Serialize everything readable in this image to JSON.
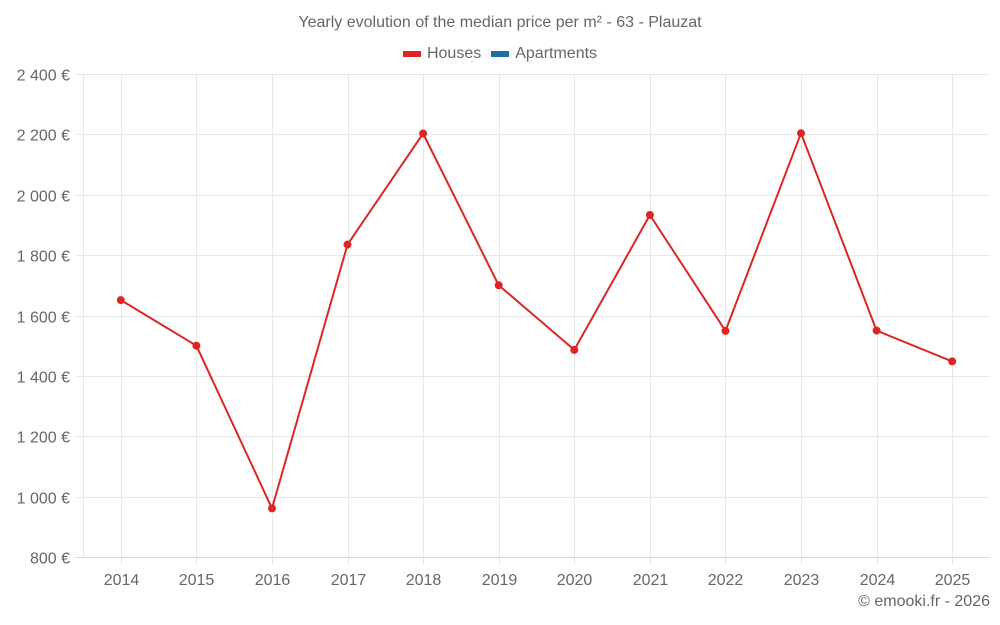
{
  "title": "Yearly evolution of the median price per m² - 63 - Plauzat",
  "legend": [
    {
      "label": "Houses",
      "color": "#dc2626"
    },
    {
      "label": "Apartments",
      "color": "#1e6fa8"
    }
  ],
  "credit": "© emooki.fr - 2026",
  "colors": {
    "houses": "#dc2626",
    "apartments": "#1e6fa8",
    "grid": "#e8e8e8",
    "text": "#666666"
  },
  "chart_data": {
    "type": "line",
    "title": "Yearly evolution of the median price per m² - 63 - Plauzat",
    "xlabel": "",
    "ylabel": "",
    "categories": [
      "2014",
      "2015",
      "2016",
      "2017",
      "2018",
      "2019",
      "2020",
      "2021",
      "2022",
      "2023",
      "2024",
      "2025"
    ],
    "series": [
      {
        "name": "Houses",
        "color": "#dc2626",
        "values": [
          1651,
          1500,
          961,
          1835,
          2203,
          1700,
          1486,
          1933,
          1549,
          2204,
          1550,
          1448
        ]
      },
      {
        "name": "Apartments",
        "color": "#1e6fa8",
        "values": []
      }
    ],
    "ylim": [
      800,
      2400
    ],
    "yticks": [
      800,
      1000,
      1200,
      1400,
      1600,
      1800,
      2000,
      2200,
      2400
    ],
    "ytick_labels": [
      "800 €",
      "1 000 €",
      "1 200 €",
      "1 400 €",
      "1 600 €",
      "1 800 €",
      "2 000 €",
      "2 200 €",
      "2 400 €"
    ],
    "grid": true,
    "legend_position": "top"
  }
}
